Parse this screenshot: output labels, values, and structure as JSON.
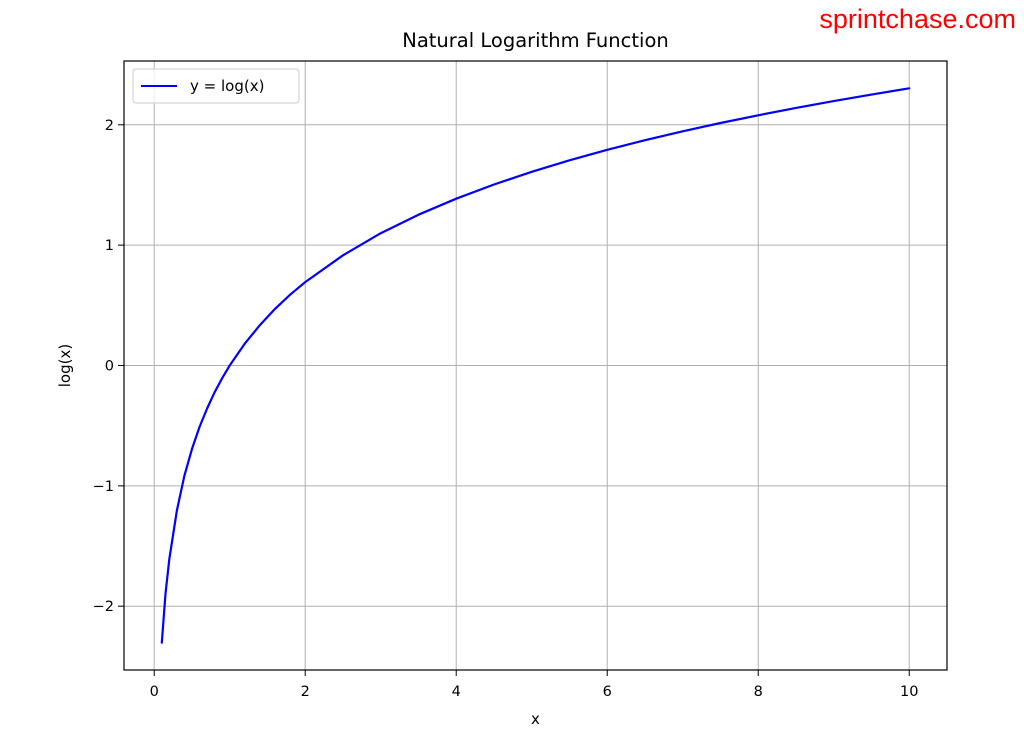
{
  "watermark": "sprintchase.com",
  "colors": {
    "series": "#0000ff",
    "grid": "#b0b0b0",
    "watermark": "#ff0000"
  },
  "chart_data": {
    "type": "line",
    "title": "Natural Logarithm Function",
    "xlabel": "x",
    "ylabel": "log(x)",
    "xlim": [
      -0.4,
      10.5
    ],
    "ylim": [
      -2.53,
      2.53
    ],
    "grid": true,
    "legend_position": "top-left",
    "x_ticks": [
      0,
      2,
      4,
      6,
      8,
      10
    ],
    "x_tick_labels": [
      "0",
      "2",
      "4",
      "6",
      "8",
      "10"
    ],
    "y_ticks": [
      -2,
      -1,
      0,
      1,
      2
    ],
    "y_tick_labels": [
      "−2",
      "−1",
      "0",
      "1",
      "2"
    ],
    "series": [
      {
        "name": "y = log(x)",
        "color": "#0000ff",
        "x": [
          0.1,
          0.15,
          0.2,
          0.3,
          0.4,
          0.5,
          0.6,
          0.7,
          0.8,
          0.9,
          1.0,
          1.2,
          1.4,
          1.6,
          1.8,
          2.0,
          2.5,
          3.0,
          3.5,
          4.0,
          4.5,
          5.0,
          5.5,
          6.0,
          6.5,
          7.0,
          7.5,
          8.0,
          8.5,
          9.0,
          9.5,
          10.0
        ],
        "y": [
          -2.303,
          -1.897,
          -1.609,
          -1.204,
          -0.916,
          -0.693,
          -0.511,
          -0.357,
          -0.223,
          -0.105,
          0.0,
          0.182,
          0.336,
          0.47,
          0.588,
          0.693,
          0.916,
          1.099,
          1.253,
          1.386,
          1.504,
          1.609,
          1.705,
          1.792,
          1.872,
          1.946,
          2.015,
          2.079,
          2.14,
          2.197,
          2.251,
          2.303
        ]
      }
    ]
  }
}
